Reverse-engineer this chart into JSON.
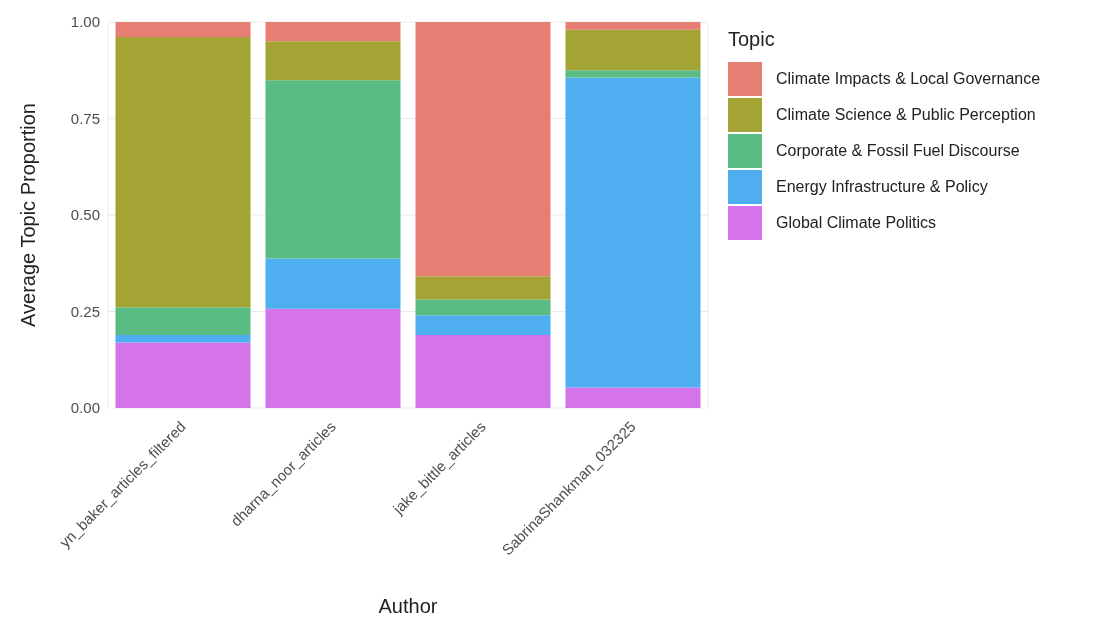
{
  "chart_data": {
    "type": "bar",
    "stacked": true,
    "xlabel": "Author",
    "ylabel": "Average Topic Proportion",
    "legend_title": "Topic",
    "legend": "right",
    "grid": true,
    "categories": [
      "yn_baker_articles_filtered",
      "dharna_noor_articles",
      "jake_bittle_articles",
      "SabrinaShankman_032325"
    ],
    "ylim": [
      0,
      1
    ],
    "yticks": [
      {
        "value": 0,
        "label": "0.00"
      },
      {
        "value": 0.25,
        "label": "0.25"
      },
      {
        "value": 0.5,
        "label": "0.50"
      },
      {
        "value": 0.75,
        "label": "0.75"
      },
      {
        "value": 1,
        "label": "1.00"
      }
    ],
    "series": [
      {
        "name": "Global Climate Politics",
        "color": "#d473ea",
        "values": [
          0.17,
          0.257,
          0.189,
          0.053
        ]
      },
      {
        "name": "Energy Infrastructure & Policy",
        "color": "#4faeef",
        "values": [
          0.019,
          0.13,
          0.051,
          0.803
        ]
      },
      {
        "name": "Corporate & Fossil Fuel Discourse",
        "color": "#58bc83",
        "values": [
          0.072,
          0.462,
          0.041,
          0.019
        ]
      },
      {
        "name": "Climate Science & Public Perception",
        "color": "#a3a434",
        "values": [
          0.7,
          0.101,
          0.06,
          0.105
        ]
      },
      {
        "name": "Climate Impacts & Local Governance",
        "color": "#e77e74",
        "values": [
          0.04,
          0.05,
          0.659,
          0.02
        ]
      }
    ]
  }
}
